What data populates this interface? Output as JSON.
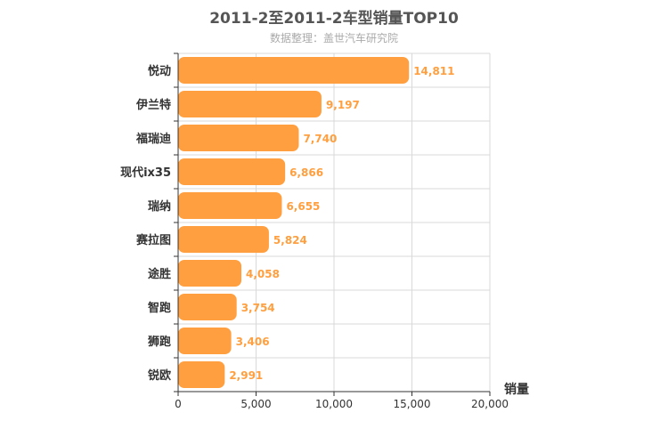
{
  "page": {
    "title": "2011-2至2011-2车型销量TOP10",
    "subtitle": "数据整理：盖世汽车研究院"
  },
  "colors": {
    "bar": "#ff9f3f",
    "value_label": "#ff9f3f",
    "grid": "#d9d9d9",
    "axis": "#333333"
  },
  "chart_data": {
    "type": "bar",
    "orientation": "horizontal",
    "title": "2011-2至2011-2车型销量TOP10",
    "subtitle": "数据整理：盖世汽车研究院",
    "categories": [
      "悦动",
      "伊兰特",
      "福瑞迪",
      "现代ix35",
      "瑞纳",
      "赛拉图",
      "途胜",
      "智跑",
      "狮跑",
      "锐欧"
    ],
    "values": [
      14811,
      9197,
      7740,
      6866,
      6655,
      5824,
      4058,
      3754,
      3406,
      2991
    ],
    "value_labels": [
      "14,811",
      "9,197",
      "7,740",
      "6,866",
      "6,655",
      "5,824",
      "4,058",
      "3,754",
      "3,406",
      "2,991"
    ],
    "xlabel": "销量",
    "ylabel": "",
    "xlim": [
      0,
      20000
    ],
    "xticks": [
      0,
      5000,
      10000,
      15000,
      20000
    ],
    "xtick_labels": [
      "0",
      "5,000",
      "10,000",
      "15,000",
      "20,000"
    ],
    "grid": true,
    "legend": "none"
  }
}
